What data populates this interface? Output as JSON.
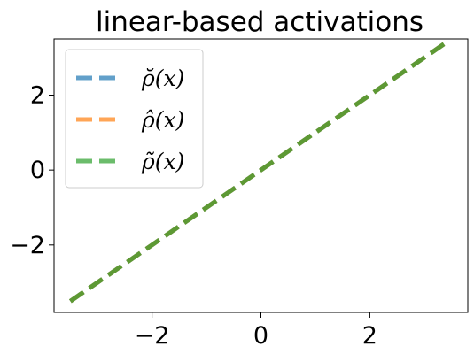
{
  "chart_data": {
    "type": "line",
    "title": "linear-based activations",
    "xlabel": "",
    "ylabel": "",
    "xlim": [
      -3.8,
      3.8
    ],
    "ylim": [
      -3.8,
      3.5
    ],
    "xticks": [
      -2,
      0,
      2
    ],
    "yticks": [
      -2,
      0,
      2
    ],
    "xtick_labels": [
      "−2",
      "0",
      "2"
    ],
    "ytick_labels": [
      "−2",
      "0",
      "2"
    ],
    "grid": false,
    "legend_position": "top-left",
    "series": [
      {
        "name": "ρ̆(x)",
        "color": "#1f77b4",
        "x": [
          -3.5,
          3.4
        ],
        "y": [
          -3.5,
          3.4
        ]
      },
      {
        "name": "ρ̂(x)",
        "color": "#ff7f0e",
        "x": [
          -3.5,
          3.4
        ],
        "y": [
          -3.5,
          3.4
        ]
      },
      {
        "name": "ρ̃(x)",
        "color": "#2ca02c",
        "x": [
          -3.5,
          3.4
        ],
        "y": [
          -3.5,
          3.4
        ]
      }
    ]
  }
}
